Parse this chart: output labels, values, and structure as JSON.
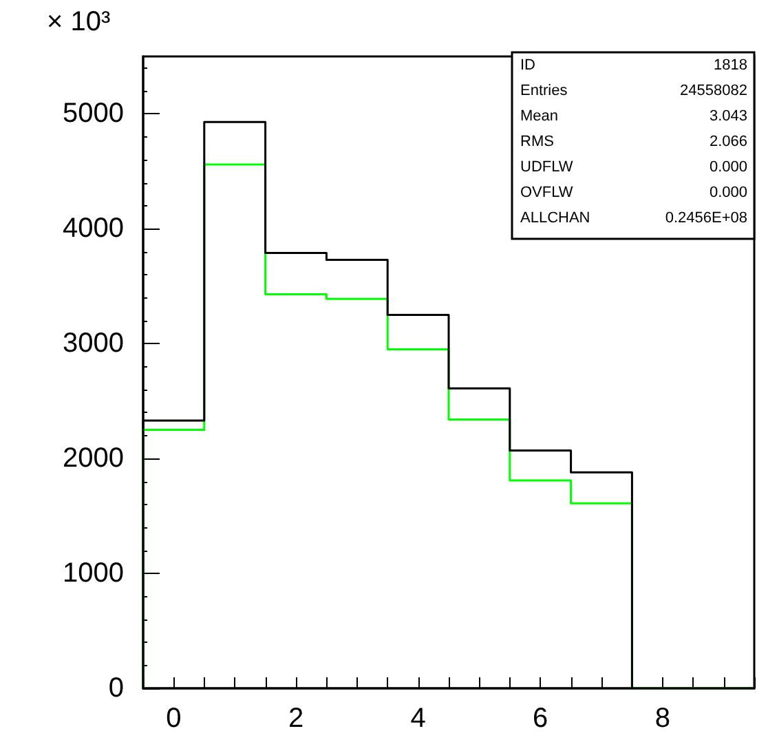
{
  "chart_data": {
    "type": "histogram",
    "ylabel": "× 10³",
    "bins": [
      -0.5,
      0.5,
      1.5,
      2.5,
      3.5,
      4.5,
      5.5,
      6.5,
      7.5,
      8.5,
      9.5
    ],
    "series": [
      {
        "color": "#000000",
        "values": [
          2330,
          4930,
          3790,
          3730,
          3250,
          2610,
          2070,
          1880,
          0,
          0
        ]
      },
      {
        "color": "#00ff00",
        "values": [
          2250,
          4560,
          3430,
          3390,
          2950,
          2340,
          1810,
          1610,
          0,
          0
        ]
      }
    ],
    "xlim": [
      -0.5,
      9.5
    ],
    "xticks": [
      0,
      2,
      4,
      6,
      8
    ],
    "ylim": [
      0,
      5500
    ],
    "yticks": [
      0,
      1000,
      2000,
      3000,
      4000,
      5000
    ],
    "annotations": [
      "ID",
      "1818",
      "Entries",
      "24558082",
      "Mean",
      "3.043",
      "RMS",
      "2.066",
      "UDFLW",
      "0.000",
      "OVFLW",
      "0.000",
      "ALLCHAN",
      "0.2456E+08"
    ],
    "grid": false
  }
}
